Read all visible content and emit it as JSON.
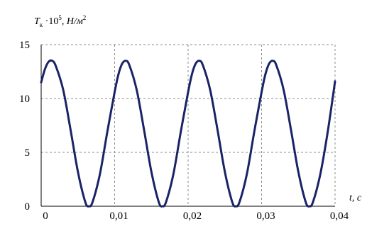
{
  "chart_data": {
    "type": "line",
    "title": "",
    "ylabel_parts": {
      "sym": "T",
      "sub": "к",
      "mid": " ·10",
      "sup": "5",
      "unit": ", Н/м",
      "unit_sup": "2"
    },
    "xlabel": "t, с",
    "xlim": [
      0,
      0.04
    ],
    "ylim": [
      0,
      15
    ],
    "x_ticks": [
      0,
      0.01,
      0.02,
      0.03,
      0.04
    ],
    "x_tick_labels": [
      "0",
      "0,01",
      "0,02",
      "0,03",
      "0,04"
    ],
    "y_ticks": [
      0,
      5,
      10,
      15
    ],
    "y_tick_labels": [
      "0",
      "5",
      "10",
      "15"
    ],
    "grid": true,
    "colors": {
      "series": "#1a2366",
      "grid": "#8c8c8c"
    },
    "series": [
      {
        "x": [
          0,
          0.0005,
          0.001,
          0.0015,
          0.002,
          0.003,
          0.004,
          0.005,
          0.006,
          0.0065,
          0.007,
          0.008,
          0.009,
          0.01,
          0.0105,
          0.011,
          0.0115,
          0.012,
          0.013,
          0.014,
          0.015,
          0.016,
          0.0165,
          0.017,
          0.018,
          0.019,
          0.02,
          0.0205,
          0.021,
          0.0215,
          0.022,
          0.023,
          0.024,
          0.025,
          0.026,
          0.0265,
          0.027,
          0.028,
          0.029,
          0.03,
          0.0305,
          0.031,
          0.0315,
          0.032,
          0.033,
          0.034,
          0.035,
          0.036,
          0.0365,
          0.037,
          0.038,
          0.039,
          0.04
        ],
        "y": [
          11.5,
          12.7,
          13.4,
          13.5,
          13.0,
          10.8,
          7.1,
          3.2,
          0.4,
          0.0,
          0.4,
          3.0,
          6.9,
          10.6,
          12.2,
          13.2,
          13.5,
          13.1,
          10.8,
          7.1,
          3.2,
          0.4,
          0.0,
          0.4,
          3.0,
          6.9,
          10.6,
          12.2,
          13.2,
          13.5,
          13.1,
          10.8,
          7.1,
          3.2,
          0.4,
          0.0,
          0.4,
          3.0,
          6.9,
          10.6,
          12.2,
          13.2,
          13.5,
          13.1,
          10.8,
          7.1,
          3.2,
          0.4,
          0.0,
          0.4,
          3.0,
          6.9,
          11.6
        ]
      }
    ]
  }
}
